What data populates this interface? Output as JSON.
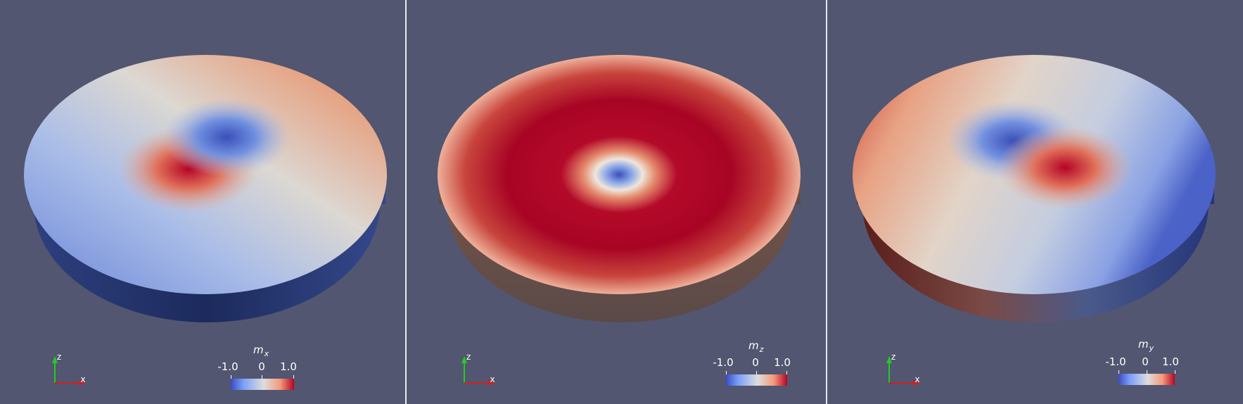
{
  "panels": [
    {
      "id": "mx",
      "quantity_symbol": "m",
      "quantity_subscript": "x",
      "colorbar": {
        "min_label": "-1.0",
        "mid_label": "0",
        "max_label": "1.0"
      },
      "axes": {
        "z_label": "z",
        "x_label": "x"
      }
    },
    {
      "id": "mz",
      "quantity_symbol": "m",
      "quantity_subscript": "z",
      "colorbar": {
        "min_label": "-1.0",
        "mid_label": "0",
        "max_label": "1.0"
      },
      "axes": {
        "z_label": "z",
        "x_label": "x"
      }
    },
    {
      "id": "my",
      "quantity_symbol": "m",
      "quantity_subscript": "y",
      "colorbar": {
        "min_label": "-1.0",
        "mid_label": "0",
        "max_label": "1.0"
      },
      "axes": {
        "z_label": "z",
        "x_label": "x"
      }
    }
  ],
  "colors": {
    "background": "#525670",
    "colormap_low": "#3b4cc0",
    "colormap_mid": "#dddddd",
    "colormap_high": "#b40426",
    "axis_z": "#22cc22",
    "axis_x": "#cc2222"
  }
}
